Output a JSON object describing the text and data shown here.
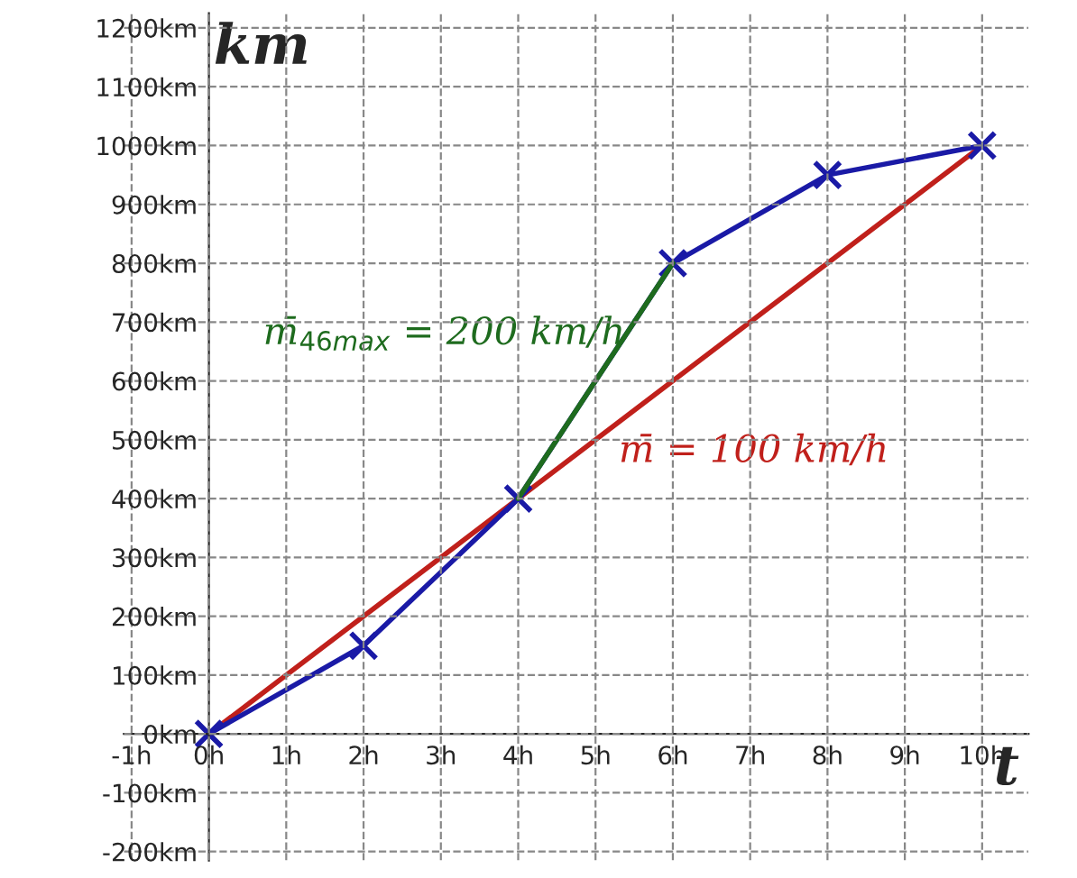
{
  "chart_data": {
    "type": "line",
    "xlabel": "t",
    "ylabel": "km",
    "x": [
      0,
      2,
      4,
      6,
      8,
      10
    ],
    "series": [
      {
        "color": "#c0201b",
        "x": [
          0,
          10
        ],
        "values": [
          0,
          1000
        ],
        "marker": "none"
      },
      {
        "color": "#1a1aa6",
        "values": [
          0,
          150,
          400,
          800,
          950,
          1000
        ],
        "marker": "cross"
      },
      {
        "color": "#1e6b1e",
        "x": [
          4,
          6
        ],
        "values": [
          400,
          800
        ],
        "marker": "none"
      }
    ],
    "xlim": [
      -1.1,
      10.6
    ],
    "ylim": [
      -215,
      1225
    ],
    "xticks": [
      {
        "value": -1,
        "label": "-1h"
      },
      {
        "value": 0,
        "label": "0h"
      },
      {
        "value": 1,
        "label": "1h"
      },
      {
        "value": 2,
        "label": "2h"
      },
      {
        "value": 3,
        "label": "3h"
      },
      {
        "value": 4,
        "label": "4h"
      },
      {
        "value": 5,
        "label": "5h"
      },
      {
        "value": 6,
        "label": "6h"
      },
      {
        "value": 7,
        "label": "7h"
      },
      {
        "value": 8,
        "label": "8h"
      },
      {
        "value": 9,
        "label": "9h"
      },
      {
        "value": 10,
        "label": "10h"
      }
    ],
    "yticks": [
      {
        "value": -200,
        "label": "-200km"
      },
      {
        "value": -100,
        "label": "-100km"
      },
      {
        "value": 0,
        "label": "0km"
      },
      {
        "value": 100,
        "label": "100km"
      },
      {
        "value": 200,
        "label": "200km"
      },
      {
        "value": 300,
        "label": "300km"
      },
      {
        "value": 400,
        "label": "400km"
      },
      {
        "value": 500,
        "label": "500km"
      },
      {
        "value": 600,
        "label": "600km"
      },
      {
        "value": 700,
        "label": "700km"
      },
      {
        "value": 800,
        "label": "800km"
      },
      {
        "value": 900,
        "label": "900km"
      },
      {
        "value": 1000,
        "label": "1000km"
      },
      {
        "value": 1100,
        "label": "1100km"
      },
      {
        "value": 1200,
        "label": "1200km"
      }
    ],
    "annotations": [
      "m̄$_{46max}$ = 200 km/h",
      "m̄ = 100 km/h"
    ],
    "grid": true,
    "legend": false
  }
}
